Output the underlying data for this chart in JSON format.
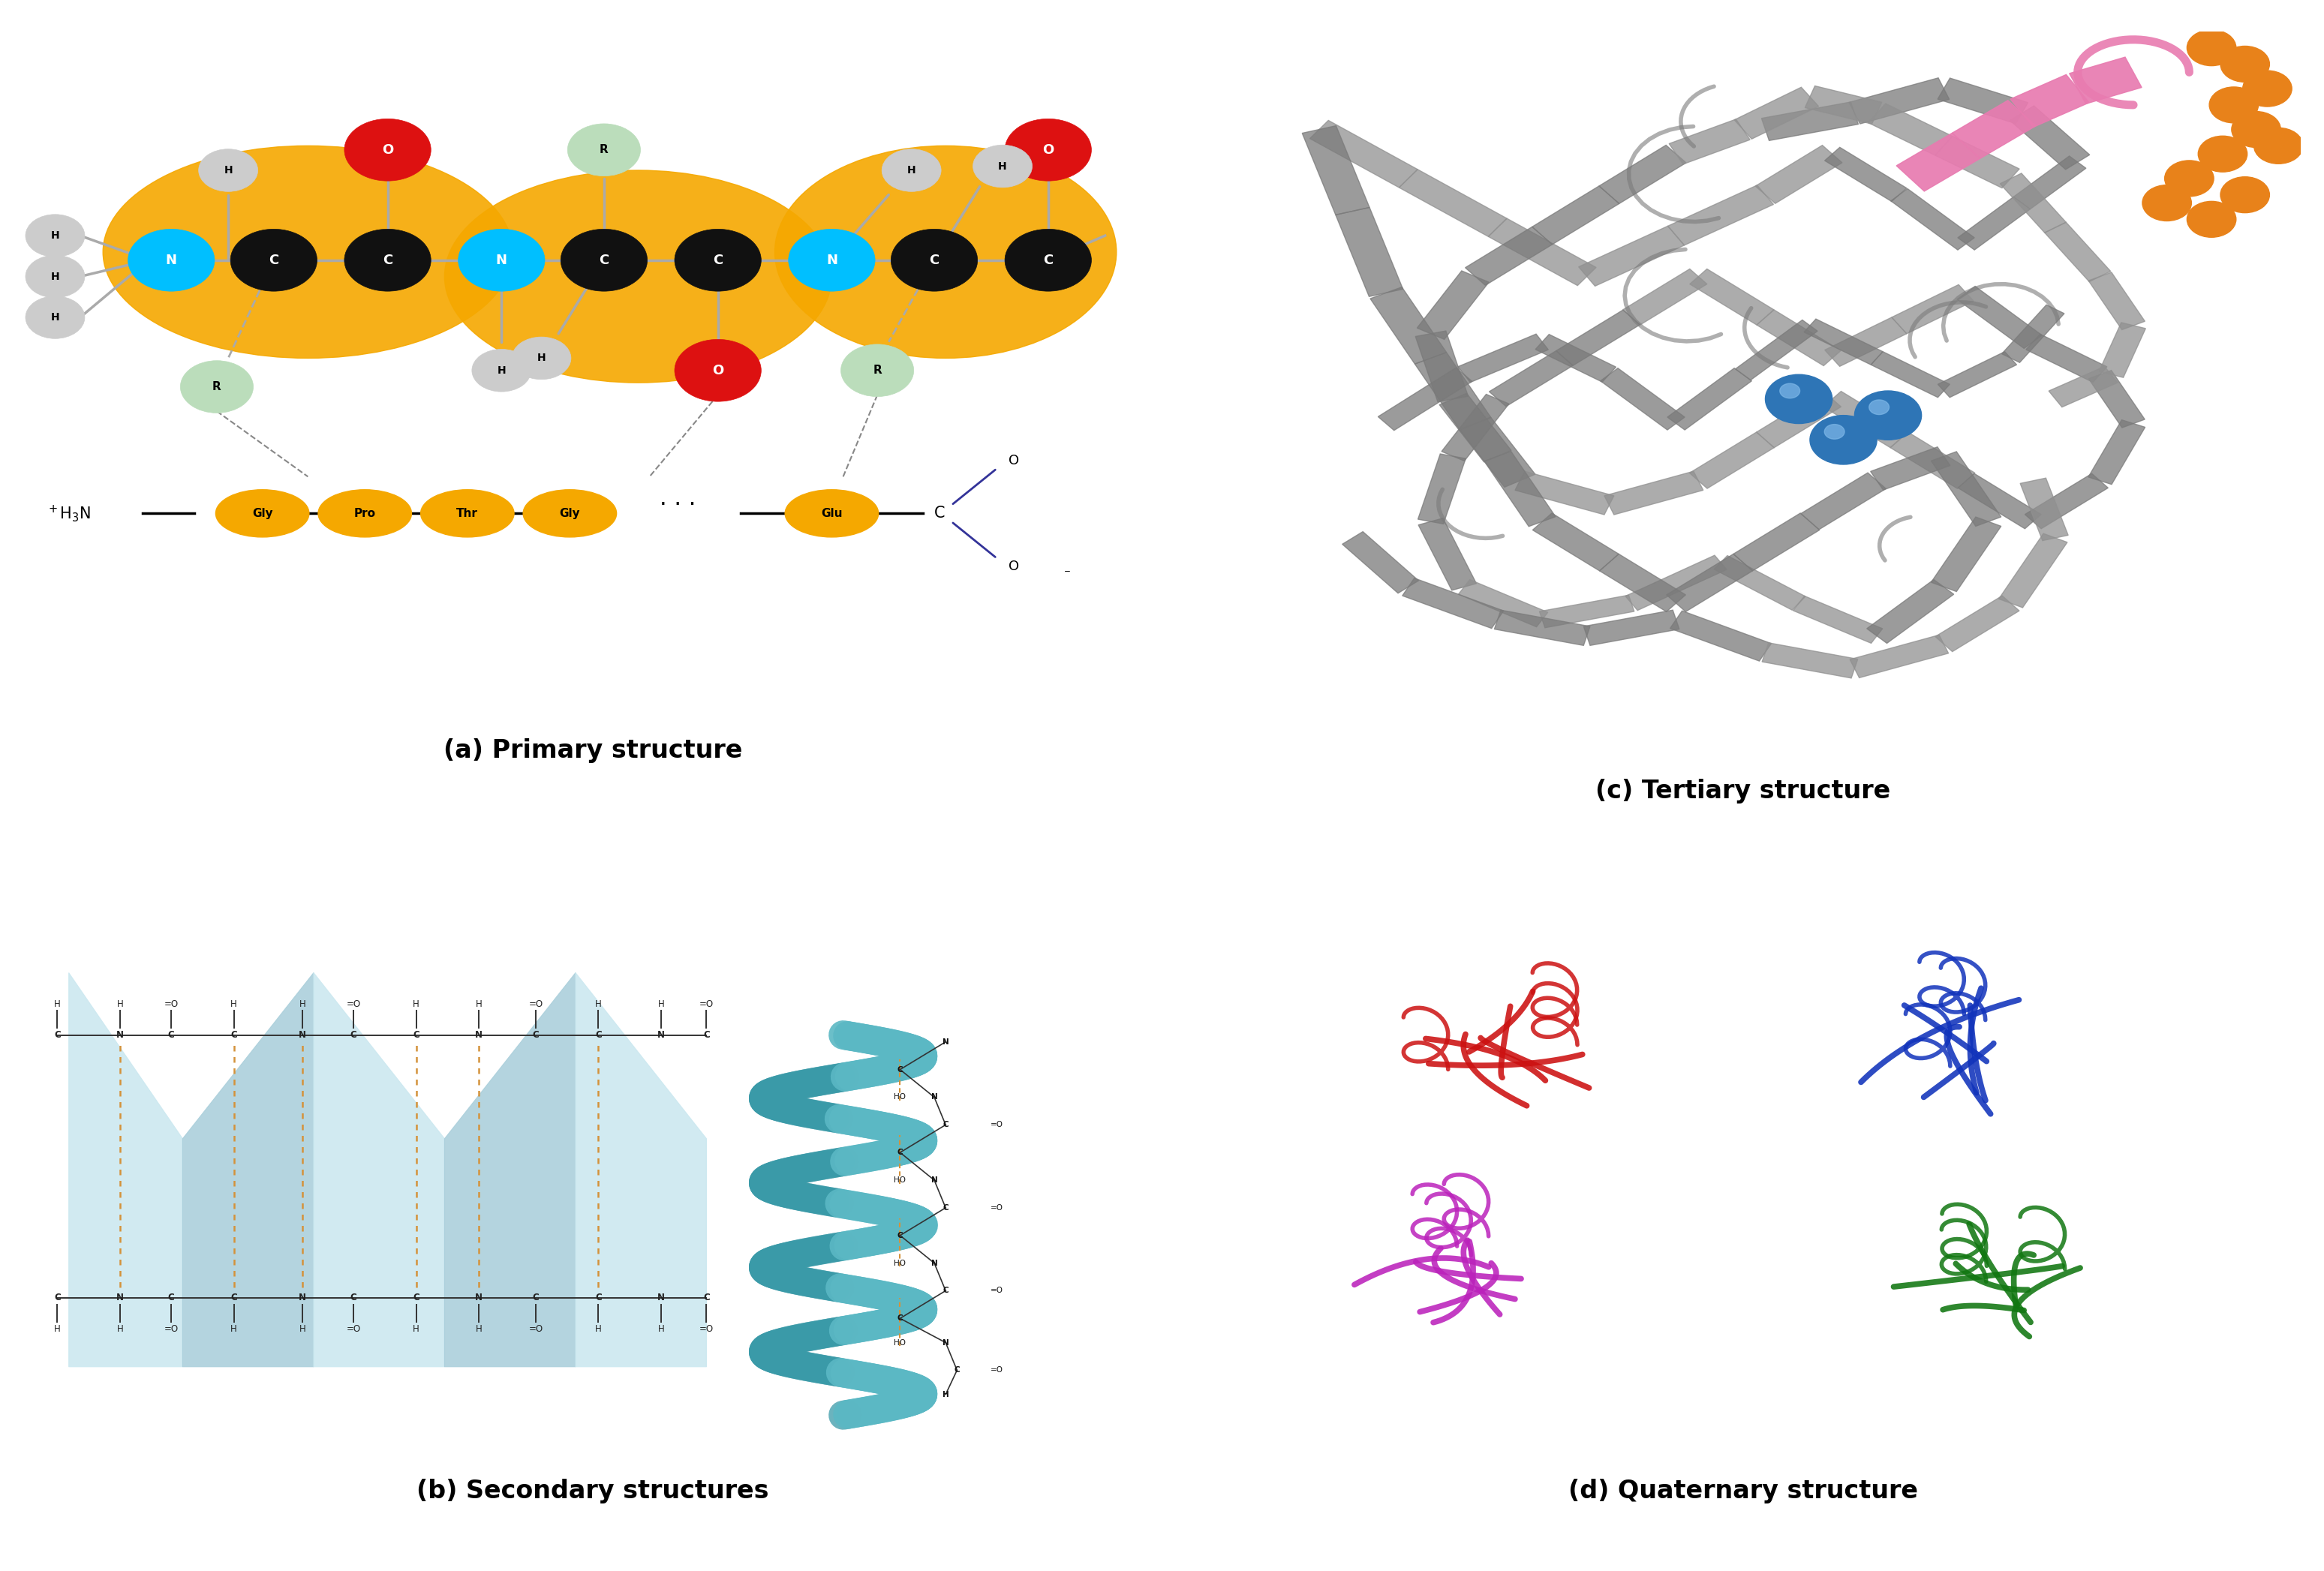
{
  "panel_a_title": "(a) Primary structure",
  "panel_b_title": "(b) Secondary structures",
  "panel_c_title": "(c) Tertiary structure",
  "panel_d_title": "(d) Quaternary structure",
  "background_color": "#ffffff",
  "gold_color": "#F5A800",
  "teal_color": "#5BB8C4",
  "sheet_light": "#B8DCE4",
  "sheet_highlight": "#DCF0F4",
  "orange_dot_color": "#E8821A",
  "blue_sphere_color": "#2E75B6",
  "pink_helix_color": "#E87BB0",
  "grey_protein": "#888888",
  "hbond_color": "#D4923A"
}
